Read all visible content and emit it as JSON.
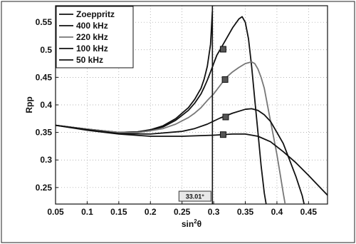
{
  "chart_data": {
    "type": "line",
    "title": "",
    "xlabel": "sin²θ",
    "ylabel": "Rpp",
    "xlim": [
      0.05,
      0.48
    ],
    "ylim": [
      0.22,
      0.58
    ],
    "xticks": [
      0.05,
      0.1,
      0.15,
      0.2,
      0.25,
      0.3,
      0.35,
      0.4,
      0.45
    ],
    "xtick_labels": [
      "0.05",
      "0.1",
      "0.15",
      "0.2",
      "0.25",
      "0.3",
      "0.35",
      "0.4",
      "0.45"
    ],
    "yticks": [
      0.25,
      0.3,
      0.35,
      0.4,
      0.45,
      0.5,
      0.55
    ],
    "ytick_labels": [
      "0.25",
      "0.3",
      "0.35",
      "0.4",
      "0.45",
      "0.5",
      "0.55"
    ],
    "grid": true,
    "legend_position": "top-left",
    "series": [
      {
        "name": "Zoeppritz",
        "color": "#111111",
        "x": [
          0.05,
          0.1,
          0.15,
          0.18,
          0.2,
          0.22,
          0.24,
          0.26,
          0.27,
          0.28,
          0.285,
          0.29,
          0.295,
          0.298
        ],
        "y": [
          0.363,
          0.356,
          0.35,
          0.351,
          0.355,
          0.362,
          0.375,
          0.395,
          0.41,
          0.43,
          0.447,
          0.47,
          0.51,
          0.57
        ]
      },
      {
        "name": "400 kHz",
        "color": "#111111",
        "x": [
          0.05,
          0.1,
          0.15,
          0.18,
          0.2,
          0.22,
          0.24,
          0.26,
          0.27,
          0.28,
          0.285,
          0.29,
          0.295,
          0.3,
          0.305,
          0.31,
          0.32,
          0.33,
          0.34,
          0.345,
          0.35,
          0.355,
          0.36,
          0.365,
          0.37,
          0.375,
          0.38,
          0.383
        ],
        "y": [
          0.363,
          0.356,
          0.35,
          0.351,
          0.354,
          0.36,
          0.372,
          0.39,
          0.403,
          0.42,
          0.432,
          0.445,
          0.46,
          0.475,
          0.49,
          0.5,
          0.52,
          0.54,
          0.556,
          0.56,
          0.55,
          0.52,
          0.47,
          0.41,
          0.35,
          0.29,
          0.24,
          0.22
        ]
      },
      {
        "name": "220 kHz",
        "color": "#777777",
        "x": [
          0.05,
          0.1,
          0.15,
          0.18,
          0.2,
          0.22,
          0.24,
          0.26,
          0.27,
          0.28,
          0.29,
          0.3,
          0.31,
          0.32,
          0.33,
          0.34,
          0.35,
          0.36,
          0.365,
          0.37,
          0.375,
          0.38,
          0.385,
          0.39,
          0.395,
          0.4,
          0.405,
          0.41,
          0.413
        ],
        "y": [
          0.363,
          0.356,
          0.35,
          0.35,
          0.353,
          0.357,
          0.365,
          0.377,
          0.385,
          0.395,
          0.408,
          0.42,
          0.435,
          0.45,
          0.46,
          0.468,
          0.475,
          0.478,
          0.475,
          0.465,
          0.45,
          0.43,
          0.4,
          0.37,
          0.34,
          0.31,
          0.275,
          0.24,
          0.22
        ]
      },
      {
        "name": "100 kHz",
        "color": "#111111",
        "x": [
          0.05,
          0.1,
          0.15,
          0.2,
          0.25,
          0.27,
          0.29,
          0.31,
          0.33,
          0.35,
          0.36,
          0.37,
          0.38,
          0.39,
          0.4,
          0.41,
          0.42,
          0.43,
          0.44,
          0.443
        ],
        "y": [
          0.363,
          0.355,
          0.348,
          0.347,
          0.352,
          0.357,
          0.365,
          0.376,
          0.385,
          0.392,
          0.393,
          0.39,
          0.382,
          0.37,
          0.35,
          0.33,
          0.3,
          0.27,
          0.235,
          0.22
        ]
      },
      {
        "name": "50 kHz",
        "color": "#111111",
        "x": [
          0.05,
          0.1,
          0.15,
          0.2,
          0.25,
          0.3,
          0.33,
          0.35,
          0.37,
          0.39,
          0.41,
          0.43,
          0.45,
          0.47,
          0.48
        ],
        "y": [
          0.363,
          0.354,
          0.347,
          0.343,
          0.343,
          0.345,
          0.347,
          0.347,
          0.343,
          0.333,
          0.315,
          0.295,
          0.272,
          0.248,
          0.236
        ]
      }
    ],
    "markers": [
      {
        "x": 0.315,
        "y": 0.501
      },
      {
        "x": 0.318,
        "y": 0.446
      },
      {
        "x": 0.319,
        "y": 0.378
      },
      {
        "x": 0.315,
        "y": 0.346
      }
    ],
    "critical_line": {
      "x": 0.298,
      "label": "33.01°"
    }
  }
}
